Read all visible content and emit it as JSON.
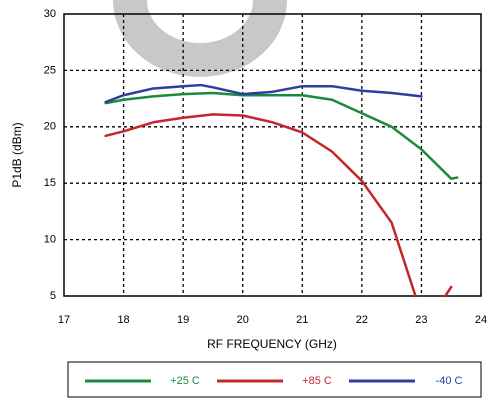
{
  "chart_data": {
    "type": "line",
    "xlabel": "RF FREQUENCY (GHz)",
    "ylabel": "P1dB (dBm)",
    "xlim": [
      17,
      24
    ],
    "xticks": [
      17,
      18,
      19,
      20,
      21,
      22,
      23,
      24
    ],
    "ylim": [
      5,
      30
    ],
    "yticks": [
      5,
      10,
      15,
      20,
      25,
      30
    ],
    "grid": true,
    "series": [
      {
        "name": "+25 C",
        "color": "#1a8a3c",
        "x": [
          17.7,
          18,
          18.5,
          19,
          19.5,
          20,
          20.5,
          21,
          21.5,
          22,
          22.5,
          23,
          23.5,
          23.6
        ],
        "values": [
          22.1,
          22.4,
          22.7,
          22.9,
          23.0,
          22.8,
          22.8,
          22.8,
          22.4,
          21.2,
          20.0,
          18.0,
          15.4,
          15.5
        ]
      },
      {
        "name": "+85 C",
        "color": "#c0282d",
        "x": [
          17.7,
          18,
          18.5,
          19,
          19.5,
          20,
          20.5,
          21,
          21.5,
          22,
          22.5,
          22.9,
          23.0,
          23.4,
          23.5
        ],
        "values": [
          19.2,
          19.6,
          20.4,
          20.8,
          21.1,
          21.0,
          20.4,
          19.5,
          17.8,
          15.2,
          11.5,
          5.0,
          null,
          5.0,
          5.8
        ]
      },
      {
        "name": "-40 C",
        "color": "#2b3f9e",
        "x": [
          17.7,
          18,
          18.5,
          19,
          19.3,
          19.5,
          20,
          20.5,
          21,
          21.5,
          22,
          22.5,
          23
        ],
        "values": [
          22.2,
          22.8,
          23.4,
          23.6,
          23.7,
          23.5,
          22.9,
          23.1,
          23.6,
          23.6,
          23.2,
          23.0,
          22.7
        ]
      }
    ]
  }
}
